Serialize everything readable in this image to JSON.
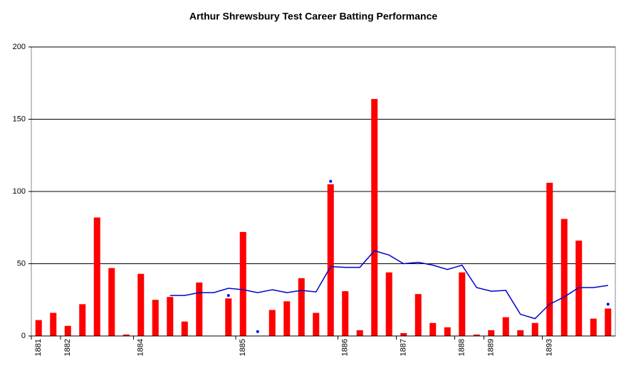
{
  "chart_data": {
    "type": "bar",
    "title": "Arthur Shrewsbury Test Career Batting Performance",
    "categories": [
      "1881",
      null,
      "1882",
      null,
      null,
      null,
      null,
      "1884",
      null,
      null,
      null,
      null,
      null,
      null,
      "1885",
      null,
      null,
      null,
      null,
      null,
      null,
      "1886",
      null,
      null,
      null,
      "1887",
      null,
      null,
      null,
      "1888",
      null,
      "1889",
      null,
      null,
      null,
      "1893",
      null,
      null,
      null,
      null
    ],
    "series": [
      {
        "type": "bar",
        "color": "#ff0000",
        "values": [
          11,
          16,
          7,
          22,
          82,
          47,
          1,
          43,
          25,
          27,
          10,
          37,
          0,
          26,
          72,
          0,
          18,
          24,
          40,
          16,
          105,
          31,
          4,
          164,
          44,
          2,
          29,
          9,
          6,
          44,
          1,
          4,
          13,
          4,
          9,
          106,
          81,
          66,
          12,
          19
        ]
      },
      {
        "type": "scatter",
        "color": "#0000ff",
        "values": [
          null,
          null,
          null,
          null,
          null,
          null,
          null,
          null,
          null,
          null,
          null,
          null,
          null,
          28,
          null,
          3,
          null,
          null,
          null,
          null,
          107,
          null,
          null,
          null,
          null,
          null,
          null,
          null,
          null,
          null,
          null,
          null,
          null,
          null,
          null,
          null,
          null,
          null,
          null,
          22
        ]
      },
      {
        "type": "line",
        "color": "#0000cc",
        "values": [
          null,
          null,
          null,
          null,
          null,
          null,
          null,
          null,
          null,
          28,
          28,
          30,
          30,
          33,
          32,
          30,
          32,
          30,
          31.5,
          30.5,
          48,
          47.5,
          47.5,
          59,
          56,
          50,
          51,
          49,
          46,
          49,
          33.5,
          31,
          31.5,
          15,
          12,
          22,
          27,
          33.5,
          33.5,
          35
        ]
      }
    ],
    "ylim": [
      0,
      200
    ],
    "yticks": [
      0,
      50,
      100,
      150,
      200
    ],
    "grid": true
  }
}
